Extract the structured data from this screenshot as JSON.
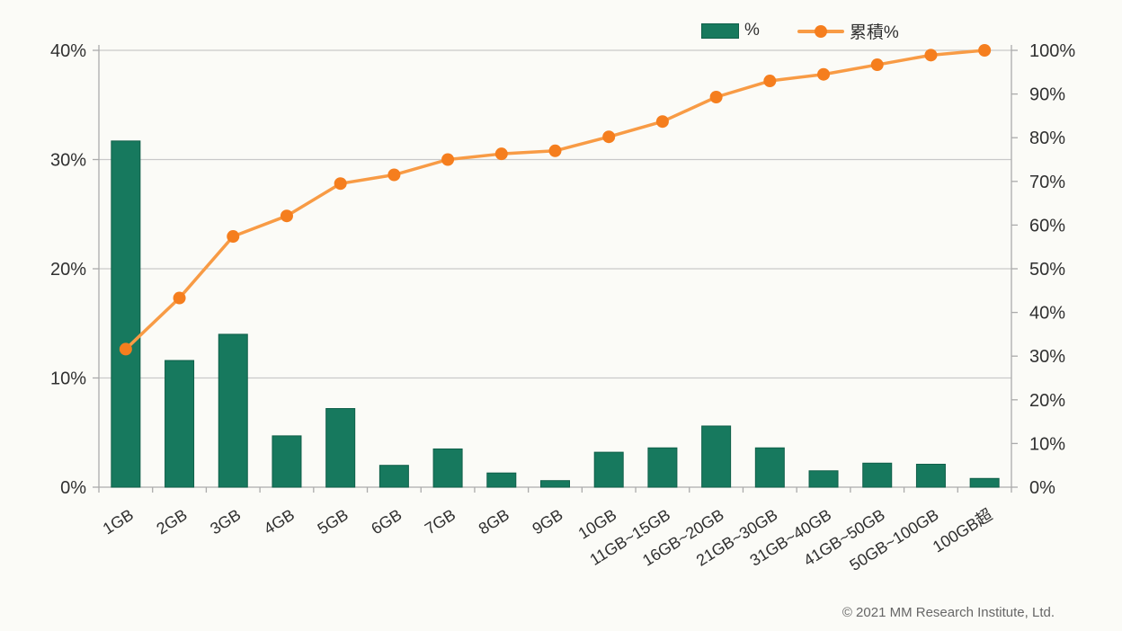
{
  "chart_data": {
    "type": "bar",
    "subtype": "pareto-combo",
    "categories": [
      "1GB",
      "2GB",
      "3GB",
      "4GB",
      "5GB",
      "6GB",
      "7GB",
      "8GB",
      "9GB",
      "10GB",
      "11GB~15GB",
      "16GB~20GB",
      "21GB~30GB",
      "31GB~40GB",
      "41GB~50GB",
      "50GB~100GB",
      "100GB超"
    ],
    "series": [
      {
        "name": "%",
        "type": "bar",
        "axis": "left",
        "values": [
          31.7,
          11.6,
          14.0,
          4.7,
          7.2,
          2.0,
          3.5,
          1.3,
          0.6,
          3.2,
          3.6,
          5.6,
          3.6,
          1.5,
          2.2,
          2.1,
          0.8
        ]
      },
      {
        "name": "累積%",
        "type": "line",
        "axis": "right",
        "values": [
          31.6,
          43.3,
          57.4,
          62.1,
          69.5,
          71.5,
          75.0,
          76.3,
          77.0,
          80.2,
          83.7,
          89.3,
          93.0,
          94.5,
          96.7,
          98.9,
          100.0
        ]
      }
    ],
    "left_axis": {
      "min": 0,
      "max": 40,
      "tick_step": 10,
      "tick_labels": [
        "0%",
        "10%",
        "20%",
        "30%",
        "40%"
      ]
    },
    "right_axis": {
      "min": 0,
      "max": 100,
      "tick_step": 10,
      "tick_labels": [
        "0%",
        "10%",
        "20%",
        "30%",
        "40%",
        "50%",
        "60%",
        "70%",
        "80%",
        "90%",
        "100%"
      ]
    },
    "legend": {
      "position": "top-right",
      "entries": [
        "%",
        "累積%"
      ]
    },
    "grid": "horizontal",
    "colors": {
      "bar_fill": "#17795E",
      "bar_stroke": "#0F5F49",
      "line": "#F89B45",
      "marker": "#F57E1E",
      "gridline": "#C9C9C9",
      "axis": "#ABABAB",
      "text": "#303030",
      "background": "#FBFBF7"
    },
    "title": "",
    "xlabel": "",
    "ylabel": ""
  },
  "footer": {
    "copyright": "© 2021 MM Research Institute, Ltd."
  }
}
